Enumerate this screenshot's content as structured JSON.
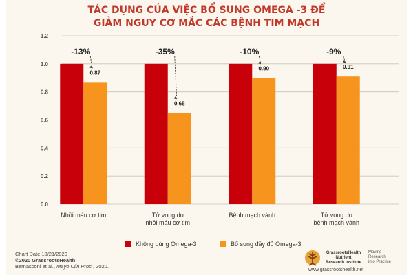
{
  "chart_data": {
    "type": "bar",
    "title": "TÁC DỤNG CỦA VIỆC BỔ SUNG OMEGA -3 ĐỂ\nGIẢM NGUY CƠ MẮC CÁC BỆNH TIM MẠCH",
    "categories": [
      "Nhồi máu cơ tim",
      "Tử vong do\nnhồi máu cơ tim",
      "Bệnh mạch vành",
      "Tử vong do\nbệnh mạch vành"
    ],
    "series": [
      {
        "name": "Không dùng Omega-3",
        "values": [
          1.0,
          1.0,
          1.0,
          1.0
        ],
        "color": "#c8000a"
      },
      {
        "name": "Bổ sung đầy đủ Omega-3",
        "values": [
          0.87,
          0.65,
          0.9,
          0.91
        ],
        "color": "#f7941d"
      }
    ],
    "data_labels": [
      "0.87",
      "0.65",
      "0.90",
      "0.91"
    ],
    "reductions": [
      "-13%",
      "-35%",
      "-10%",
      "-9%"
    ],
    "yticks": [
      "0.0",
      "0.2",
      "0.4",
      "0.6",
      "0.8",
      "1.0",
      "1.2"
    ],
    "ylim": [
      0,
      1.2
    ],
    "grid": true,
    "legend_position": "bottom"
  },
  "footer": {
    "chart_date": "Chart Date 10/21/2020",
    "copyright": "©2020 GrassrootsHealth",
    "citation_authors": "Bernasconi et al., ",
    "citation_journal": "Mayo Clin Proc.",
    "citation_year": ", 2020."
  },
  "brand": {
    "name": "GrassrootsHealth\nNutrient\nResearch Institute",
    "tagline": "Moving\nResearch\ninto Practice",
    "url": "www.grassrootshealth.net"
  },
  "colors": {
    "accent": "#c0392b",
    "background": "#fbf7ee"
  }
}
